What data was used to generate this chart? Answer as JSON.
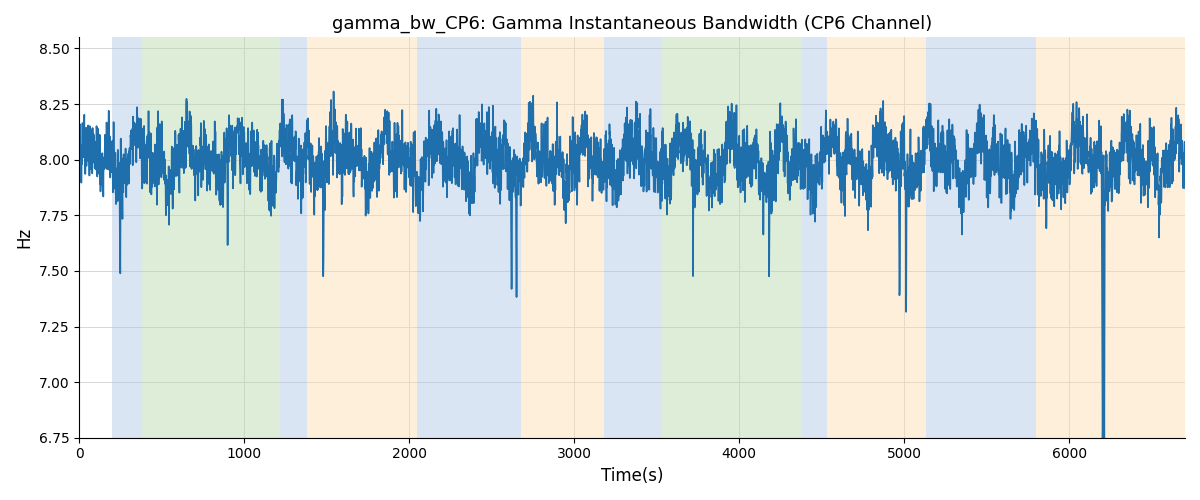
{
  "title": "gamma_bw_CP6: Gamma Instantaneous Bandwidth (CP6 Channel)",
  "xlabel": "Time(s)",
  "ylabel": "Hz",
  "xlim": [
    0,
    6700
  ],
  "ylim": [
    6.75,
    8.55
  ],
  "line_color": "#1f6fad",
  "line_width": 1.2,
  "background_regions": [
    {
      "xmin": 200,
      "xmax": 380,
      "color": "#AEC6E8"
    },
    {
      "xmin": 380,
      "xmax": 1220,
      "color": "#B5D9A8"
    },
    {
      "xmin": 1220,
      "xmax": 1380,
      "color": "#AEC6E8"
    },
    {
      "xmin": 1380,
      "xmax": 2050,
      "color": "#FDDCB0"
    },
    {
      "xmin": 2050,
      "xmax": 2680,
      "color": "#AEC6E8"
    },
    {
      "xmin": 2680,
      "xmax": 3180,
      "color": "#FDDCB0"
    },
    {
      "xmin": 3180,
      "xmax": 3530,
      "color": "#AEC6E8"
    },
    {
      "xmin": 3530,
      "xmax": 3700,
      "color": "#B5D9A8"
    },
    {
      "xmin": 3700,
      "xmax": 4380,
      "color": "#B5D9A8"
    },
    {
      "xmin": 4380,
      "xmax": 4530,
      "color": "#AEC6E8"
    },
    {
      "xmin": 4530,
      "xmax": 5130,
      "color": "#FDDCB0"
    },
    {
      "xmin": 5130,
      "xmax": 5800,
      "color": "#AEC6E8"
    },
    {
      "xmin": 5800,
      "xmax": 5970,
      "color": "#FDDCB0"
    },
    {
      "xmin": 5970,
      "xmax": 6700,
      "color": "#FDDCB0"
    }
  ],
  "alpha": 0.45,
  "seed": 42,
  "n_points": 6700,
  "t_start": 0,
  "t_end": 6700,
  "yticks": [
    6.75,
    7.0,
    7.25,
    7.5,
    7.75,
    8.0,
    8.25,
    8.5
  ]
}
